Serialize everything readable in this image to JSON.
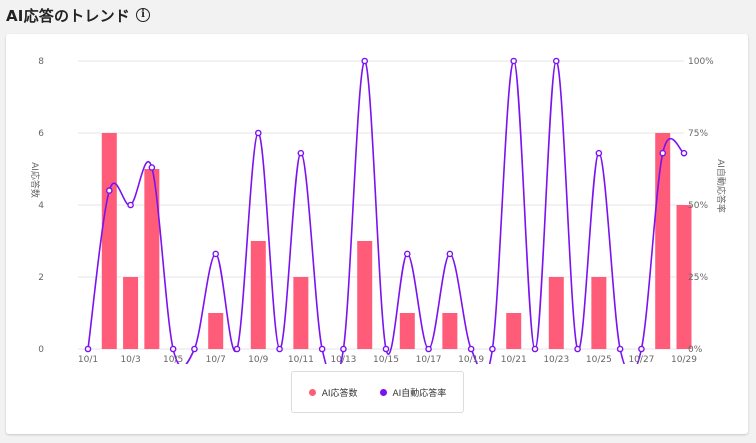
{
  "header": {
    "title": "AI応答のトレンド",
    "info_icon": "info-icon"
  },
  "colors": {
    "bar": "#ff5c7a",
    "line": "#7b12f0",
    "grid": "#e6e6e6"
  },
  "chart_data": {
    "type": "bar",
    "x": [
      "10/1",
      "10/2",
      "10/3",
      "10/4",
      "10/5",
      "10/6",
      "10/7",
      "10/8",
      "10/9",
      "10/10",
      "10/11",
      "10/12",
      "10/13",
      "10/14",
      "10/15",
      "10/16",
      "10/17",
      "10/18",
      "10/19",
      "10/20",
      "10/21",
      "10/22",
      "10/23",
      "10/24",
      "10/25",
      "10/26",
      "10/27",
      "10/28",
      "10/29"
    ],
    "x_tick_labels": [
      "10/1",
      "10/3",
      "10/5",
      "10/7",
      "10/9",
      "10/11",
      "10/13",
      "10/15",
      "10/17",
      "10/19",
      "10/21",
      "10/23",
      "10/25",
      "10/27",
      "10/29"
    ],
    "series": [
      {
        "name": "AI応答数",
        "type": "bar",
        "axis": "left",
        "values": [
          0,
          6,
          2,
          5,
          0,
          0,
          1,
          0,
          3,
          0,
          2,
          0,
          0,
          3,
          0,
          1,
          0,
          1,
          0,
          0,
          1,
          0,
          2,
          0,
          2,
          0,
          0,
          6,
          4
        ]
      },
      {
        "name": "AI自動応答率",
        "type": "line",
        "axis": "right",
        "unit": "%",
        "values": [
          0,
          55,
          50,
          63,
          0,
          0,
          33,
          0,
          75,
          0,
          68,
          0,
          0,
          100,
          0,
          33,
          0,
          33,
          0,
          0,
          100,
          0,
          100,
          0,
          68,
          0,
          0,
          68,
          68
        ]
      }
    ],
    "ylabel": "AI応答数",
    "y2label": "AI自動応答率",
    "ylim": [
      0,
      8
    ],
    "yticks": [
      0,
      2,
      4,
      6,
      8
    ],
    "y2lim": [
      0,
      100
    ],
    "y2ticks": [
      "0%",
      "25%",
      "50%",
      "75%",
      "100%"
    ],
    "grid": true,
    "legend_position": "bottom"
  }
}
